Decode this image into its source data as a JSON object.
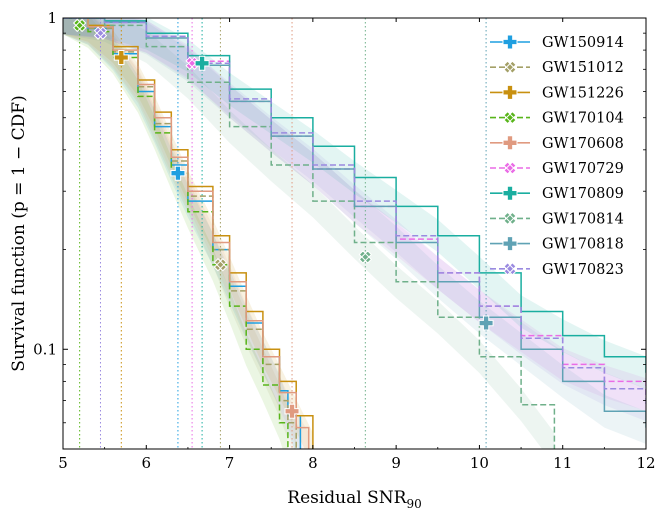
{
  "chart_data": {
    "type": "line",
    "title": "",
    "xlabel": "Residual SNR",
    "xlabel_sub": "90",
    "ylabel": "Survival function (p = 1 − CDF)",
    "xlim": [
      5,
      12
    ],
    "ylim": [
      0.05,
      1
    ],
    "yscale": "log",
    "grid": false,
    "legend_position": "top-right",
    "x_ticks": [
      5,
      6,
      7,
      8,
      9,
      10,
      11,
      12
    ],
    "y_ticks": [
      {
        "value": 1,
        "label": "1"
      },
      {
        "value": 0.1,
        "label": "0.1"
      }
    ],
    "series": [
      {
        "name": "GW150914",
        "color": "#1f9fe0",
        "dash": "solid",
        "marker": "plus",
        "observed": {
          "x": 6.38,
          "y": 0.34
        },
        "x": [
          5.0,
          5.3,
          5.6,
          5.9,
          6.1,
          6.3,
          6.5,
          6.8,
          7.0,
          7.2,
          7.4,
          7.6,
          7.7,
          7.85
        ],
        "y": [
          1.0,
          0.93,
          0.78,
          0.6,
          0.47,
          0.36,
          0.28,
          0.2,
          0.155,
          0.12,
          0.095,
          0.075,
          0.063,
          0.05
        ]
      },
      {
        "name": "GW151012",
        "color": "#a4a067",
        "dash": "dashed",
        "marker": "cross",
        "observed": {
          "x": 6.89,
          "y": 0.18
        },
        "x": [
          5.0,
          5.3,
          5.6,
          5.9,
          6.1,
          6.3,
          6.5,
          6.8,
          7.0,
          7.2,
          7.4,
          7.6,
          7.7,
          7.8
        ],
        "y": [
          1.0,
          0.93,
          0.79,
          0.62,
          0.48,
          0.37,
          0.29,
          0.2,
          0.15,
          0.115,
          0.09,
          0.07,
          0.06,
          0.05
        ]
      },
      {
        "name": "GW151226",
        "color": "#c89010",
        "dash": "solid",
        "marker": "plus",
        "observed": {
          "x": 5.7,
          "y": 0.76
        },
        "x": [
          5.0,
          5.3,
          5.6,
          5.9,
          6.1,
          6.3,
          6.5,
          6.8,
          7.0,
          7.2,
          7.4,
          7.6,
          7.8,
          8.0
        ],
        "y": [
          1.0,
          0.95,
          0.82,
          0.65,
          0.52,
          0.4,
          0.31,
          0.22,
          0.17,
          0.13,
          0.1,
          0.08,
          0.063,
          0.05
        ]
      },
      {
        "name": "GW170104",
        "color": "#58b51a",
        "dash": "dashed",
        "marker": "cross",
        "observed": {
          "x": 5.2,
          "y": 0.95
        },
        "x": [
          5.0,
          5.3,
          5.6,
          5.9,
          6.1,
          6.3,
          6.5,
          6.8,
          7.0,
          7.2,
          7.4,
          7.6,
          7.7
        ],
        "y": [
          1.0,
          0.91,
          0.76,
          0.58,
          0.45,
          0.34,
          0.26,
          0.18,
          0.135,
          0.1,
          0.078,
          0.06,
          0.05
        ]
      },
      {
        "name": "GW170608",
        "color": "#e09a80",
        "dash": "solid",
        "marker": "plus",
        "observed": {
          "x": 7.75,
          "y": 0.065
        },
        "x": [
          5.0,
          5.3,
          5.6,
          5.9,
          6.1,
          6.3,
          6.5,
          6.8,
          7.0,
          7.2,
          7.4,
          7.6,
          7.8,
          7.95
        ],
        "y": [
          1.0,
          0.94,
          0.8,
          0.63,
          0.5,
          0.38,
          0.3,
          0.21,
          0.16,
          0.122,
          0.095,
          0.074,
          0.058,
          0.05
        ]
      },
      {
        "name": "GW170729",
        "color": "#ea6ce6",
        "dash": "dashed",
        "marker": "cross",
        "observed": {
          "x": 6.55,
          "y": 0.73
        },
        "x": [
          5.0,
          5.5,
          6.0,
          6.5,
          7.0,
          7.5,
          8.0,
          8.5,
          9.0,
          9.5,
          10.0,
          10.5,
          11.0,
          11.5,
          12.0
        ],
        "y": [
          1.0,
          0.97,
          0.88,
          0.74,
          0.56,
          0.44,
          0.35,
          0.27,
          0.215,
          0.17,
          0.135,
          0.11,
          0.09,
          0.08,
          0.073
        ]
      },
      {
        "name": "GW170809",
        "color": "#1aaea0",
        "dash": "solid",
        "marker": "plus",
        "observed": {
          "x": 6.67,
          "y": 0.73
        },
        "x": [
          5.0,
          5.5,
          6.0,
          6.5,
          7.0,
          7.5,
          8.0,
          8.5,
          9.0,
          9.5,
          10.0,
          10.5,
          11.0,
          11.5,
          12.0
        ],
        "y": [
          1.0,
          0.98,
          0.9,
          0.77,
          0.61,
          0.5,
          0.41,
          0.33,
          0.27,
          0.22,
          0.17,
          0.13,
          0.11,
          0.095,
          0.085
        ]
      },
      {
        "name": "GW170814",
        "color": "#6fb08a",
        "dash": "dashed",
        "marker": "cross",
        "observed": {
          "x": 8.63,
          "y": 0.19
        },
        "x": [
          5.0,
          5.5,
          6.0,
          6.5,
          7.0,
          7.5,
          8.0,
          8.5,
          9.0,
          9.5,
          10.0,
          10.5,
          10.9
        ],
        "y": [
          1.0,
          0.95,
          0.82,
          0.64,
          0.47,
          0.36,
          0.28,
          0.21,
          0.16,
          0.125,
          0.095,
          0.068,
          0.05
        ]
      },
      {
        "name": "GW170818",
        "color": "#5fa2b4",
        "dash": "solid",
        "marker": "plus",
        "observed": {
          "x": 10.08,
          "y": 0.12
        },
        "x": [
          5.0,
          5.5,
          6.0,
          6.5,
          7.0,
          7.5,
          8.0,
          8.5,
          9.0,
          9.5,
          10.0,
          10.5,
          11.0,
          11.5,
          12.0
        ],
        "y": [
          1.0,
          0.97,
          0.87,
          0.72,
          0.56,
          0.44,
          0.35,
          0.27,
          0.21,
          0.16,
          0.125,
          0.1,
          0.08,
          0.065,
          0.058
        ]
      },
      {
        "name": "GW170823",
        "color": "#9a8ae0",
        "dash": "dashed",
        "marker": "cross",
        "observed": {
          "x": 5.45,
          "y": 0.9
        },
        "x": [
          5.0,
          5.5,
          6.0,
          6.5,
          7.0,
          7.5,
          8.0,
          8.5,
          9.0,
          9.5,
          10.0,
          10.5,
          11.0,
          11.5,
          12.0
        ],
        "y": [
          1.0,
          0.97,
          0.88,
          0.73,
          0.57,
          0.45,
          0.36,
          0.28,
          0.22,
          0.17,
          0.135,
          0.108,
          0.088,
          0.076,
          0.068
        ]
      }
    ]
  }
}
